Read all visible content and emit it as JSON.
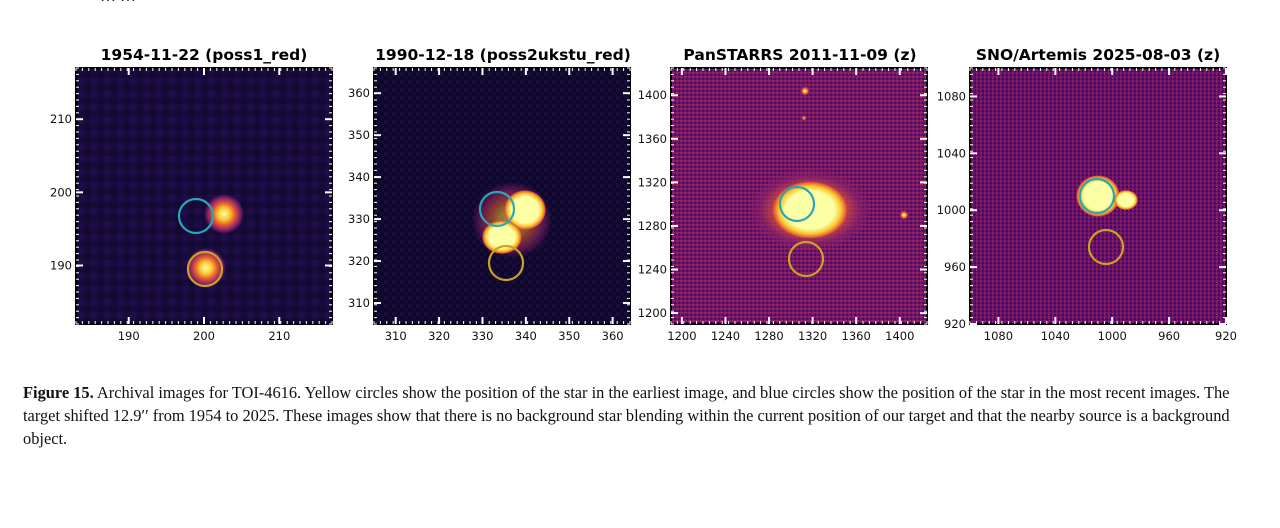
{
  "figure": {
    "caption_label": "Figure 15.",
    "caption_text": "Archival images for TOI-4616. Yellow circles show the position of the star in the earliest image, and blue circles show the position of the star in the most recent images. The target shifted 12.9′′ from 1954 to 2025. These images show that there is no background star blending within the current position of our target and that the nearby source is a background object."
  },
  "colors": {
    "cmap_dark": "#000004",
    "cmap_mid": "#b5367a",
    "cmap_bright": "#fcffa4",
    "earliest_circle": "#c9a227",
    "recent_circle": "#2aa7b5"
  },
  "panels": [
    {
      "title": "1954-11-22 (poss1_red)",
      "x_ticks": [
        "190",
        "200",
        "210"
      ],
      "y_ticks": [
        "210",
        "200",
        "190"
      ],
      "x_range": [
        183,
        217
      ],
      "y_range": [
        182,
        217
      ]
    },
    {
      "title": "1990-12-18 (poss2ukstu_red)",
      "x_ticks": [
        "310",
        "320",
        "330",
        "340",
        "350",
        "360"
      ],
      "y_ticks": [
        "360",
        "350",
        "340",
        "330",
        "320",
        "310"
      ],
      "x_range": [
        305,
        364
      ],
      "y_range": [
        305,
        366
      ]
    },
    {
      "title": "PanSTARRS 2011-11-09 (z)",
      "x_ticks": [
        "1200",
        "1240",
        "1280",
        "1320",
        "1360",
        "1400"
      ],
      "y_ticks": [
        "1400",
        "1360",
        "1320",
        "1280",
        "1240",
        "1200"
      ],
      "x_range": [
        1190,
        1425
      ],
      "y_range": [
        1190,
        1425
      ]
    },
    {
      "title": "SNO/Artemis 2025-08-03 (z)",
      "x_ticks": [
        "1080",
        "1040",
        "1000",
        "960",
        "920"
      ],
      "y_ticks": [
        "1080",
        "1040",
        "1000",
        "960",
        "920"
      ],
      "x_range": [
        1100,
        920
      ],
      "y_range": [
        920,
        1100
      ]
    }
  ]
}
